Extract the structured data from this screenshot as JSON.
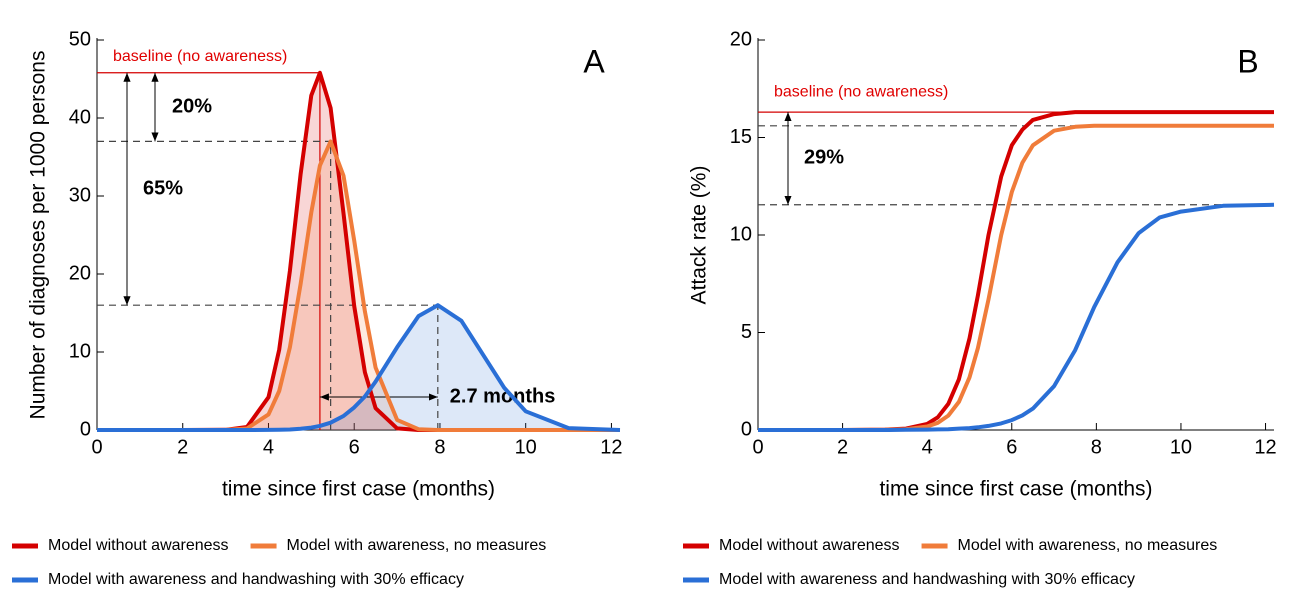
{
  "chart_data": [
    {
      "type": "area",
      "panel_label": "A",
      "xlabel": "time since first case (months)",
      "ylabel": "Number of diagnoses per 1000 persons",
      "xlim": [
        0,
        12.2
      ],
      "xticks": [
        0,
        2,
        4,
        6,
        8,
        10,
        12
      ],
      "ylim": [
        0,
        50
      ],
      "yticks": [
        0,
        10,
        20,
        30,
        40,
        50
      ],
      "x": [
        0,
        1,
        2,
        3,
        3.5,
        4,
        4.25,
        4.5,
        4.75,
        5,
        5.2,
        5.45,
        5.75,
        6,
        6.25,
        6.5,
        7,
        7.5,
        7.95,
        8.5,
        9,
        9.5,
        10,
        11,
        12.2
      ],
      "series": [
        {
          "name": "Model without awareness",
          "color": "#d40000",
          "values": [
            0,
            0,
            0,
            0.02,
            0.38,
            4.2,
            10.3,
            20.4,
            32.8,
            42.9,
            45.8,
            41.3,
            27.8,
            15.9,
            7.4,
            2.8,
            0.2,
            0,
            0,
            0,
            0,
            0,
            0,
            0,
            0
          ]
        },
        {
          "name": "Model with awareness, no measures",
          "color": "#f07c3a",
          "values": [
            0,
            0,
            0,
            0.01,
            0.19,
            2.0,
            5.0,
            10.6,
            18.7,
            27.9,
            33.9,
            37,
            32.6,
            24.3,
            15.2,
            8.0,
            1.3,
            0.1,
            0,
            0,
            0,
            0,
            0,
            0,
            0
          ]
        },
        {
          "name": "Model with awareness and handwashing with 30% efficacy",
          "color": "#2a6fd6",
          "values": [
            0,
            0,
            0,
            0,
            0,
            0.01,
            0.03,
            0.07,
            0.15,
            0.31,
            0.52,
            0.94,
            1.8,
            2.9,
            4.3,
            6.2,
            10.6,
            14.6,
            16,
            14.0,
            9.7,
            5.4,
            2.4,
            0.24,
            0
          ]
        }
      ],
      "peaks": [
        {
          "x": 5.2,
          "y": 45.8
        },
        {
          "x": 5.45,
          "y": 37
        },
        {
          "x": 7.95,
          "y": 16
        }
      ],
      "baseline_label": "baseline (no awareness)",
      "annotations": [
        "20%",
        "65%",
        "2.7 months"
      ]
    },
    {
      "type": "line",
      "panel_label": "B",
      "xlabel": "time since first case (months)",
      "ylabel": "Attack rate (%)",
      "xlim": [
        0,
        12.2
      ],
      "xticks": [
        0,
        2,
        4,
        6,
        8,
        10,
        12
      ],
      "ylim": [
        0,
        20
      ],
      "yticks": [
        0,
        5,
        10,
        15,
        20
      ],
      "x": [
        0,
        1,
        2,
        3,
        3.5,
        4,
        4.25,
        4.5,
        4.75,
        5,
        5.2,
        5.45,
        5.75,
        6,
        6.25,
        6.5,
        7,
        7.5,
        7.95,
        8.5,
        9,
        9.5,
        10,
        11,
        12.2
      ],
      "series": [
        {
          "name": "Model without awareness",
          "color": "#d40000",
          "values": [
            0,
            0,
            0,
            0.02,
            0.07,
            0.31,
            0.65,
            1.34,
            2.6,
            4.7,
            6.9,
            10.0,
            13.0,
            14.6,
            15.4,
            15.9,
            16.2,
            16.3,
            16.3,
            16.3,
            16.3,
            16.3,
            16.3,
            16.3,
            16.3
          ]
        },
        {
          "name": "Model with awareness, no measures",
          "color": "#f07c3a",
          "values": [
            0,
            0,
            0,
            0.01,
            0.04,
            0.18,
            0.37,
            0.74,
            1.44,
            2.7,
            4.2,
            6.7,
            10.0,
            12.2,
            13.7,
            14.6,
            15.35,
            15.55,
            15.6,
            15.6,
            15.6,
            15.6,
            15.6,
            15.6,
            15.6
          ]
        },
        {
          "name": "Model with awareness and handwashing with 30% efficacy",
          "color": "#2a6fd6",
          "values": [
            0,
            0,
            0,
            0,
            0.01,
            0.02,
            0.03,
            0.04,
            0.07,
            0.1,
            0.14,
            0.21,
            0.34,
            0.51,
            0.75,
            1.1,
            2.25,
            4.1,
            6.3,
            8.6,
            10.1,
            10.9,
            11.2,
            11.5,
            11.55
          ]
        }
      ],
      "levels": [
        16.3,
        15.6,
        11.55
      ],
      "baseline_label": "baseline (no awareness)",
      "annotations": [
        "29%"
      ]
    }
  ]
}
